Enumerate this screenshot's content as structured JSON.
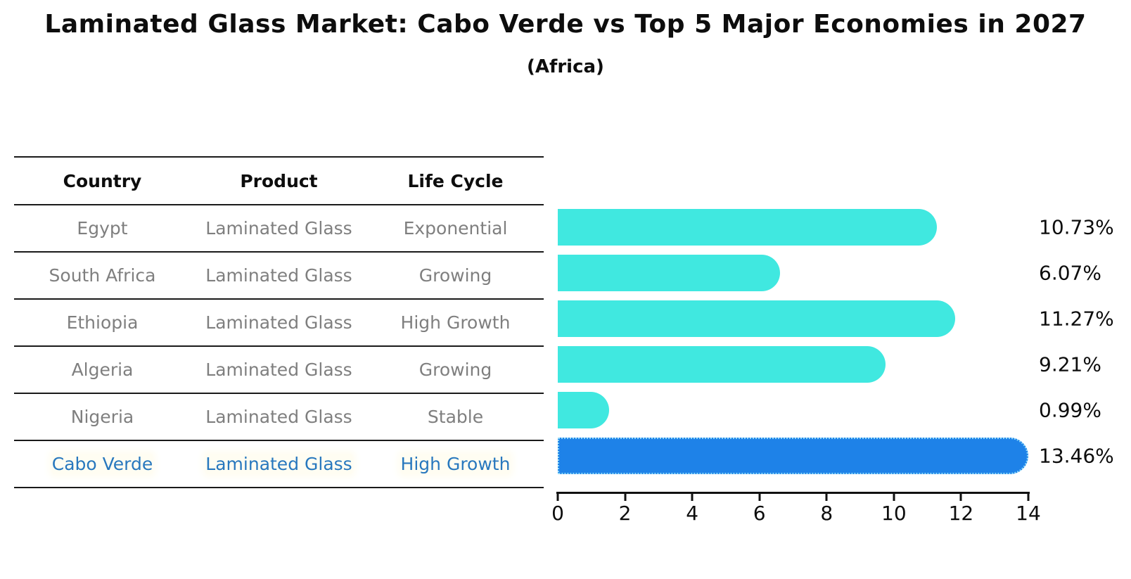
{
  "title": "Laminated Glass Market: Cabo Verde vs Top 5 Major Economies in 2027",
  "subtitle": "(Africa)",
  "table": {
    "headers": [
      "Country",
      "Product",
      "Life Cycle"
    ],
    "rows": [
      {
        "country": "Egypt",
        "product": "Laminated Glass",
        "life_cycle": "Exponential"
      },
      {
        "country": "South Africa",
        "product": "Laminated Glass",
        "life_cycle": "Growing"
      },
      {
        "country": "Ethiopia",
        "product": "Laminated Glass",
        "life_cycle": "High Growth"
      },
      {
        "country": "Algeria",
        "product": "Laminated Glass",
        "life_cycle": "Growing"
      },
      {
        "country": "Nigeria",
        "product": "Laminated Glass",
        "life_cycle": "Stable"
      },
      {
        "country": "Cabo Verde",
        "product": "Laminated Glass",
        "life_cycle": "High Growth"
      }
    ],
    "highlight_row": "Cabo Verde"
  },
  "chart_data": {
    "type": "bar",
    "orientation": "horizontal",
    "categories": [
      "Egypt",
      "South Africa",
      "Ethiopia",
      "Algeria",
      "Nigeria",
      "Cabo Verde"
    ],
    "values": [
      10.73,
      6.07,
      11.27,
      9.21,
      0.99,
      13.46
    ],
    "value_labels": [
      "10.73%",
      "6.07%",
      "11.27%",
      "9.21%",
      "0.99%",
      "13.46%"
    ],
    "x_ticks": [
      0,
      2,
      4,
      6,
      8,
      10,
      12,
      14
    ],
    "x_tick_labels": [
      "0",
      "2",
      "4",
      "6",
      "8",
      "10",
      "12",
      "14"
    ],
    "xlim": [
      0,
      14
    ],
    "xlabel": "",
    "ylabel": "",
    "grid": false,
    "legend": false,
    "highlight_index": 5
  },
  "colors": {
    "background": "#FFFFFF",
    "table_text": "#7F7F7F",
    "header_text": "#0D0D0D",
    "highlight_text": "#2878BE",
    "bar_cyan": "#40E8E0",
    "bar_blue": "#1E82E8",
    "axis": "#111111"
  }
}
